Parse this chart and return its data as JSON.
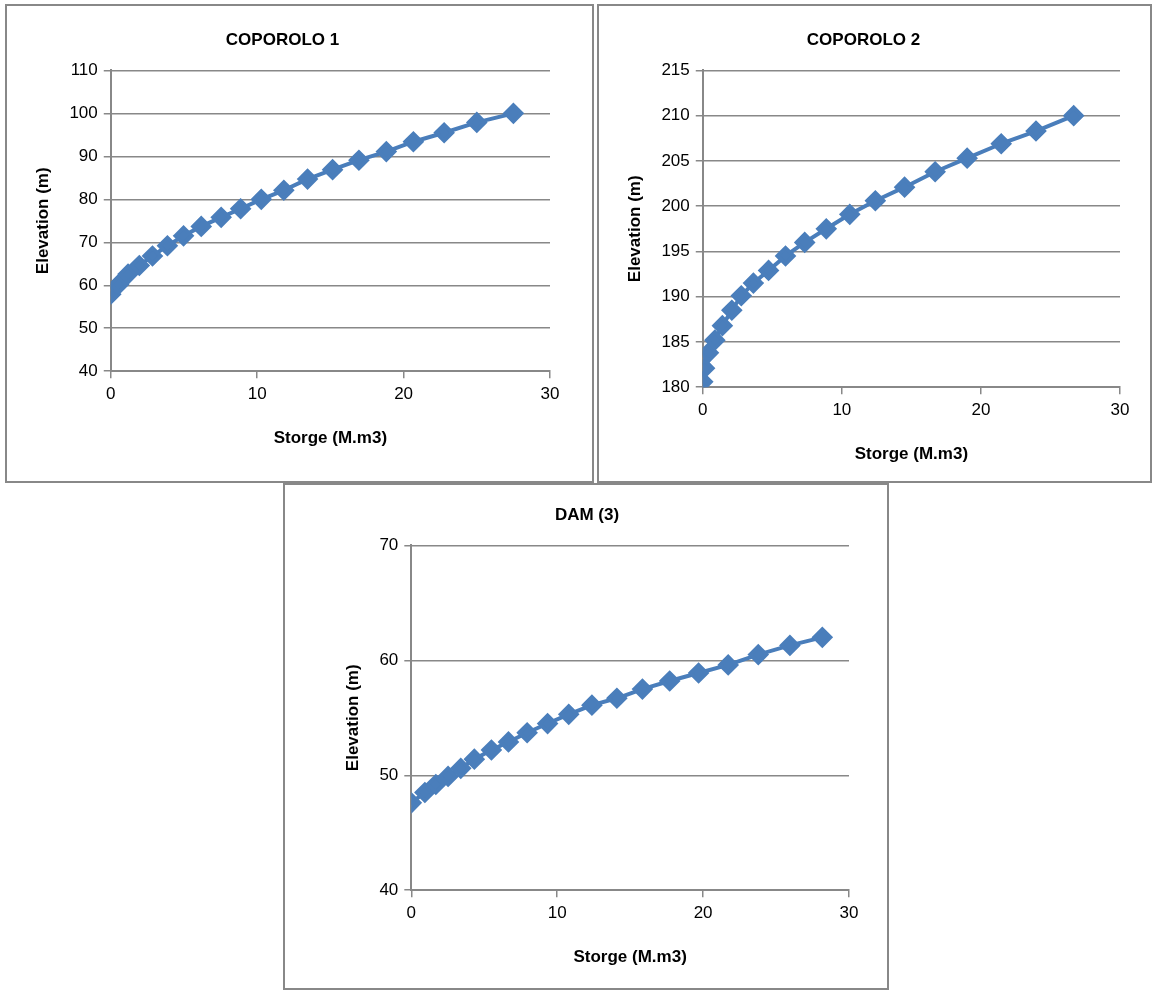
{
  "chart_data": [
    {
      "type": "line",
      "title": "COPOROLO 1",
      "xlabel": "Storge (M.m3)",
      "ylabel": "Elevation (m)",
      "marker": "diamond",
      "line_style": "solid",
      "grid": "y",
      "x": [
        0,
        0.54,
        1.18,
        1.95,
        2.85,
        3.87,
        4.97,
        6.18,
        7.54,
        8.87,
        10.28,
        11.82,
        13.44,
        15.15,
        16.95,
        18.82,
        20.67,
        22.77,
        25.0,
        27.5
      ],
      "series": [
        {
          "color": "#4a7ebb",
          "values": [
            57.9,
            60.2,
            62.6,
            64.6,
            66.8,
            69.2,
            71.5,
            73.7,
            75.8,
            77.8,
            80.0,
            82.1,
            84.7,
            86.9,
            89.1,
            91.1,
            93.4,
            95.5,
            97.9,
            100
          ]
        }
      ],
      "xlim": [
        0,
        30
      ],
      "xticks": [
        0,
        10,
        20,
        30
      ],
      "ylim": [
        40,
        110
      ],
      "yticks": [
        40,
        50,
        60,
        70,
        80,
        90,
        100,
        110
      ]
    },
    {
      "type": "line",
      "title": "COPOROLO 2",
      "xlabel": "Storge (M.m3)",
      "ylabel": "Elevation (m)",
      "marker": "diamond",
      "line_style": "solid",
      "grid": "y",
      "x": [
        0,
        0.13,
        0.41,
        0.87,
        1.41,
        2.09,
        2.77,
        3.64,
        4.73,
        5.95,
        7.33,
        8.88,
        10.57,
        12.41,
        14.51,
        16.71,
        19.01,
        21.46,
        23.96,
        26.67
      ],
      "series": [
        {
          "color": "#4a7ebb",
          "values": [
            180.6,
            182.1,
            183.8,
            185.2,
            186.8,
            188.5,
            190.1,
            191.5,
            192.9,
            194.5,
            196.0,
            197.5,
            199.1,
            200.6,
            202.1,
            203.8,
            205.3,
            206.9,
            208.3,
            210
          ]
        }
      ],
      "xlim": [
        0,
        30
      ],
      "xticks": [
        0,
        10,
        20,
        30
      ],
      "ylim": [
        180,
        215
      ],
      "yticks": [
        180,
        185,
        190,
        195,
        200,
        205,
        210,
        215
      ]
    },
    {
      "type": "line",
      "title": "DAM (3)",
      "xlabel": "Storge (M.m3)",
      "ylabel": "Elevation (m)",
      "marker": "diamond",
      "line_style": "solid",
      "grid": "y",
      "x": [
        0,
        0.93,
        1.68,
        2.52,
        3.39,
        4.32,
        5.49,
        6.66,
        7.94,
        9.34,
        10.79,
        12.38,
        14.09,
        15.84,
        17.71,
        19.69,
        21.72,
        23.78,
        25.95,
        28.17
      ],
      "series": [
        {
          "color": "#4a7ebb",
          "values": [
            47.6,
            48.5,
            49.2,
            49.9,
            50.6,
            51.4,
            52.2,
            52.9,
            53.7,
            54.5,
            55.3,
            56.1,
            56.7,
            57.5,
            58.2,
            58.9,
            59.6,
            60.5,
            61.3,
            62.0
          ]
        }
      ],
      "xlim": [
        0,
        30
      ],
      "xticks": [
        0,
        10,
        20,
        30
      ],
      "ylim": [
        40,
        70
      ],
      "yticks": [
        40,
        50,
        60,
        70
      ]
    }
  ]
}
